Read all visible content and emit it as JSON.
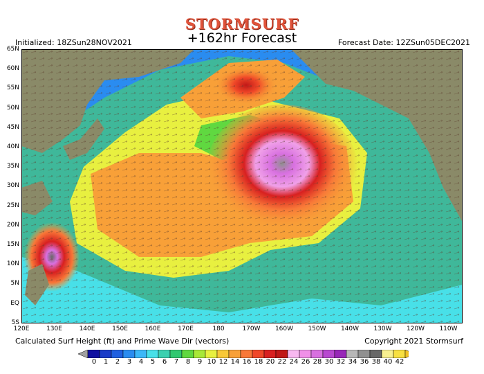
{
  "header": {
    "brand": "STORMSURF",
    "subtitle": "+162hr Forecast",
    "initialized": "Initialized: 18ZSun28NOV2021",
    "forecast_date": "Forecast Date: 12ZSun05DEC2021"
  },
  "map": {
    "lat_labels": [
      "65N",
      "60N",
      "55N",
      "50N",
      "45N",
      "40N",
      "35N",
      "30N",
      "25N",
      "20N",
      "15N",
      "10N",
      "5N",
      "EQ",
      "5S"
    ],
    "lon_labels": [
      "120E",
      "130E",
      "140E",
      "150E",
      "160E",
      "170E",
      "180",
      "170W",
      "160W",
      "150W",
      "140W",
      "130W",
      "120W",
      "110W"
    ],
    "colors": {
      "land": "#8a8a68",
      "ocean_background": "#3fb89a",
      "border": "#000000"
    }
  },
  "footer": {
    "caption": "Calculated Surf Height (ft) and Prime Wave Dir (vectors)",
    "copyright": "Copyright 2021 Stormsurf"
  },
  "colorbar": {
    "labels": [
      "0",
      "1",
      "2",
      "3",
      "4",
      "5",
      "6",
      "7",
      "8",
      "9",
      "10",
      "12",
      "14",
      "16",
      "18",
      "20",
      "22",
      "24",
      "26",
      "28",
      "30",
      "32",
      "34",
      "36",
      "38",
      "40",
      "42"
    ],
    "colors": [
      "#1010a0",
      "#1a3cc8",
      "#2060e0",
      "#2a8cf0",
      "#3cb8f8",
      "#48e0e8",
      "#3cd0b0",
      "#30c870",
      "#60d840",
      "#a8e838",
      "#e8f040",
      "#f8c838",
      "#f8a038",
      "#f87838",
      "#f04828",
      "#d82020",
      "#c01818",
      "#f8b8f0",
      "#f090e8",
      "#d870e0",
      "#b848d0",
      "#9828b8",
      "#b8b8b8",
      "#909090",
      "#686868",
      "#f8f090",
      "#f8e040"
    ],
    "under_color": "#a0a0a0",
    "over_color": "#f0c020"
  }
}
